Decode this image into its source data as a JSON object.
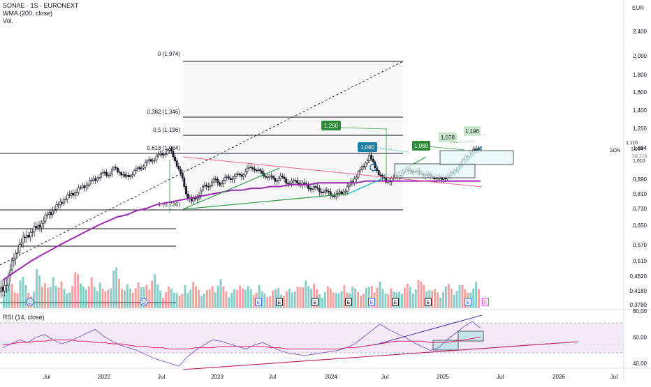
{
  "header": {
    "symbol": "SONAE · 1S · EURONEXT",
    "wma_label": "WMA (200, close)",
    "vol_label": "Vol."
  },
  "currency": "EUR",
  "rsi_label": "RSI (14, close)",
  "right_labels": {
    "ticker": "SON",
    "last_price": "1,094",
    "countdown": "2d 21h",
    "tag1": "1,110",
    "tag2": "1,010"
  },
  "chart_data": {
    "type": "line",
    "title": "SONAE · 1S · EURONEXT",
    "x_ticks": [
      "Jul",
      "2022",
      "Jul",
      "2023",
      "Jul",
      "2024",
      "Jul",
      "2025",
      "Jul",
      "2026",
      "Jul"
    ],
    "price_axis": {
      "ticks": [
        "2,400",
        "2,000",
        "1,800",
        "1,600",
        "1,400",
        "1,250",
        "1,094",
        "0,890",
        "0,810",
        "0,730",
        "0,650",
        "0,570",
        "0,510",
        "0,4620",
        "0,4180",
        "0,3780"
      ],
      "ylim": [
        0.378,
        2.4
      ]
    },
    "rsi_axis": {
      "ticks": [
        "80,00",
        "60,00",
        "40,00"
      ],
      "ylim": [
        30,
        80
      ]
    },
    "fib_levels": [
      {
        "label": "0 (1,974)",
        "value": 1.974
      },
      {
        "label": "0,382 (1,346)",
        "value": 1.346
      },
      {
        "label": "0,5 (1,196)",
        "value": 1.196
      },
      {
        "label": "0,618 (1,064)",
        "value": 1.064
      },
      {
        "label": "1 (0,726)",
        "value": 0.726
      }
    ],
    "annotations": [
      {
        "label": "1,250",
        "value": 1.25
      },
      {
        "label": "1,060",
        "value": 1.06
      },
      {
        "label": "1,060",
        "value": 1.06
      },
      {
        "label": "1,078",
        "value": 1.078
      },
      {
        "label": "1,196",
        "value": 1.196
      }
    ],
    "series": [
      {
        "values": [
          0.42,
          0.46,
          0.52,
          0.57,
          0.6,
          0.62,
          0.64,
          0.66,
          0.7,
          0.72,
          0.75,
          0.78,
          0.8,
          0.82,
          0.84,
          0.86,
          0.88,
          0.9,
          0.93,
          0.92,
          0.96,
          0.94,
          0.9,
          0.92,
          0.95,
          0.97,
          1.0,
          1.02,
          1.04,
          1.06,
          1.08,
          1.02,
          0.92,
          0.82,
          0.76,
          0.8,
          0.84,
          0.86,
          0.88,
          0.87,
          0.89,
          0.9,
          0.91,
          0.92,
          0.95,
          0.97,
          0.94,
          0.92,
          0.9,
          0.89,
          0.9,
          0.88,
          0.87,
          0.88,
          0.86,
          0.85,
          0.84,
          0.83,
          0.82,
          0.81,
          0.8,
          0.82,
          0.84,
          0.88,
          0.93,
          0.98,
          1.04,
          0.97,
          0.91,
          0.88,
          0.89,
          0.91,
          0.93,
          0.95,
          0.94,
          0.93,
          0.92,
          0.91,
          0.9,
          0.89,
          0.91,
          0.93,
          0.97,
          1.02,
          1.06,
          1.08,
          1.1
        ]
      },
      {
        "values": [
          0.45,
          0.47,
          0.49,
          0.51,
          0.53,
          0.55,
          0.57,
          0.59,
          0.61,
          0.63,
          0.65,
          0.67,
          0.69,
          0.7,
          0.72,
          0.73,
          0.75,
          0.76,
          0.77,
          0.78,
          0.79,
          0.8,
          0.81,
          0.82,
          0.83,
          0.83,
          0.84,
          0.84,
          0.85,
          0.85,
          0.86,
          0.86,
          0.86,
          0.87,
          0.87,
          0.87,
          0.87,
          0.87,
          0.88,
          0.88,
          0.88,
          0.88,
          0.88,
          0.88,
          0.88,
          0.88,
          0.88,
          0.88,
          0.88,
          0.88,
          0.88
        ]
      },
      {
        "values": [
          52,
          55,
          58,
          56,
          60,
          62,
          58,
          55,
          57,
          60,
          63,
          66,
          61,
          57,
          54,
          52,
          50,
          47,
          44,
          42,
          40,
          38,
          45,
          50,
          54,
          58,
          57,
          55,
          53,
          51,
          54,
          56,
          53,
          50,
          48,
          47,
          46,
          47,
          48,
          49,
          50,
          52,
          55,
          60,
          65,
          70,
          66,
          63,
          60,
          56,
          53,
          50,
          52,
          58,
          63,
          68,
          72,
          67
        ]
      },
      {
        "values": [
          54,
          55,
          56,
          56,
          57,
          57,
          58,
          58,
          58,
          57,
          57,
          56,
          56,
          55,
          55,
          54,
          53,
          53,
          52,
          52,
          51,
          51,
          51,
          52,
          52,
          52,
          53,
          53,
          53,
          53,
          53,
          53,
          52,
          52,
          51,
          51,
          51,
          51,
          51,
          51,
          51,
          52,
          52,
          53,
          54,
          55,
          56,
          57,
          57,
          57,
          57,
          56,
          56,
          56,
          57,
          58,
          59,
          60
        ]
      },
      {
        "values": [
          0.9,
          1.1,
          0.8,
          1.3,
          1.0,
          0.7,
          1.6,
          1.2,
          0.9,
          1.4,
          1.1,
          0.8,
          1.0,
          1.5,
          1.2,
          0.9,
          1.3,
          1.1,
          0.8,
          1.0,
          1.7,
          1.3,
          1.0,
          0.8,
          1.2,
          0.9,
          1.1,
          1.4,
          1.0,
          0.7,
          0.9,
          0.8,
          0.6,
          1.0,
          1.1,
          0.9,
          0.7,
          0.8,
          1.0,
          1.2,
          0.9,
          0.7,
          0.8,
          1.1,
          0.9,
          0.8,
          1.0,
          0.7,
          0.6,
          0.8,
          0.9,
          0.7,
          0.8,
          1.0,
          0.9,
          1.3,
          1.0,
          0.8,
          0.7,
          0.9,
          0.8,
          0.7,
          1.0,
          0.9,
          0.8,
          0.7,
          0.9,
          1.0,
          1.1,
          0.8,
          0.9,
          0.7,
          0.8,
          1.0,
          0.9,
          1.2,
          1.1,
          0.9,
          0.8,
          0.7,
          0.9,
          1.0,
          0.8,
          1.0,
          0.9,
          0.8,
          1.1
        ]
      }
    ],
    "legend": "top-left",
    "grid": false
  },
  "colors": {
    "candle_up": "#26a69a",
    "candle_down": "#ef5350",
    "wma": "#9c27b0",
    "rsi": "#7e57c2",
    "rsi_ma": "#e91e63",
    "trend_green": "#2e9e48",
    "trend_red": "#f06292",
    "fib": "#131722",
    "badge_blue": "#1a7fa6",
    "badge_green": "#2e8b3a",
    "badge_light": "#c8e6c9"
  }
}
